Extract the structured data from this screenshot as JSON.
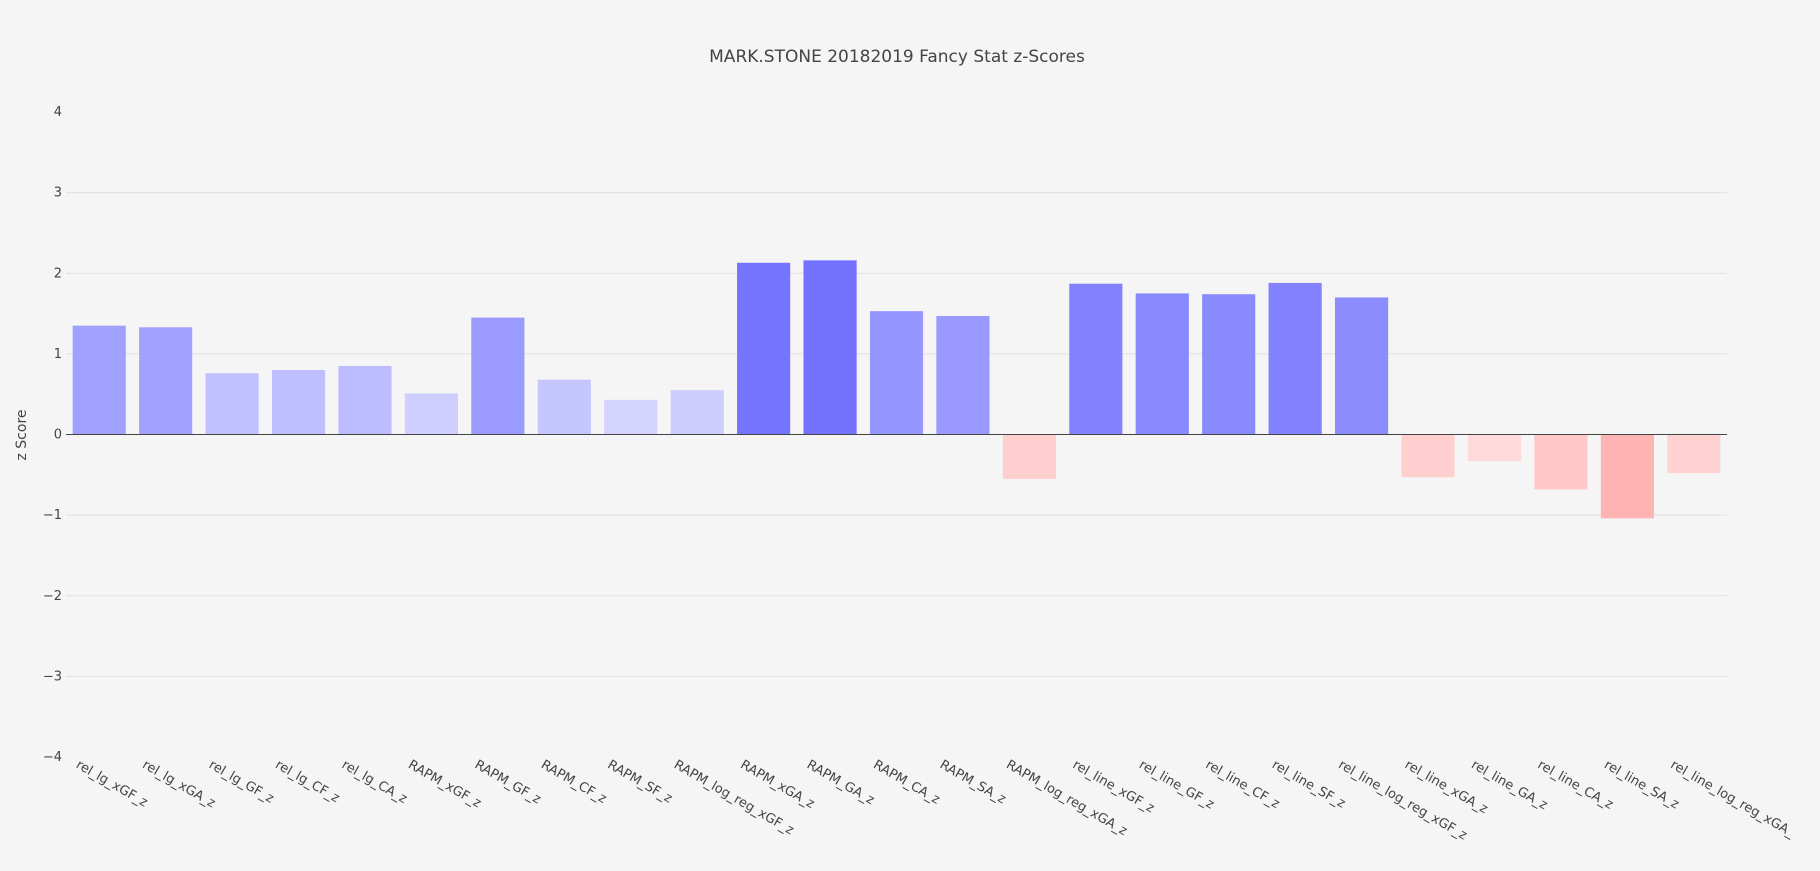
{
  "chart_data": {
    "type": "bar",
    "title": "MARK.STONE 20182019 Fancy Stat z-Scores",
    "xlabel": "",
    "ylabel": "z Score",
    "ylim": [
      -4,
      4
    ],
    "yticks": [
      "−4",
      "−3",
      "−2",
      "−1",
      "0",
      "1",
      "2",
      "3",
      "4"
    ],
    "yticks_values": [
      -4,
      -3,
      -2,
      -1,
      0,
      1,
      2,
      3,
      4
    ],
    "grid": true,
    "legend": "none",
    "colors": {
      "positive": "#7272ff",
      "negative": "#ffb3b3",
      "background": "#f5f5f5",
      "grid": "#e0e0e0",
      "zeroline": "#444444"
    },
    "categories": [
      "rel_lg_xGF_z",
      "rel_lg_xGA_z",
      "rel_lg_GF_z",
      "rel_lg_CF_z",
      "rel_lg_CA_z",
      "RAPM_xGF_z",
      "RAPM_GF_z",
      "RAPM_CF_z",
      "RAPM_SF_z",
      "RAPM_log_reg_xGF_z",
      "RAPM_xGA_z",
      "RAPM_GA_z",
      "RAPM_CA_z",
      "RAPM_SA_z",
      "RAPM_log_reg_xGA_z",
      "rel_line_xGF_z",
      "rel_line_GF_z",
      "rel_line_CF_z",
      "rel_line_SF_z",
      "rel_line_log_reg_xGF_z",
      "rel_line_xGA_z",
      "rel_line_GA_z",
      "rel_line_CA_z",
      "rel_line_SA_z",
      "rel_line_log_reg_xGA_z"
    ],
    "tick_labels": [
      "rel_lg_xGF_z",
      "rel_lg_xGA_z",
      "rel_lg_GF_z",
      "rel_lg_CF_z",
      "rel_lg_CA_z",
      "RAPM_xGF_z",
      "RAPM_GF_z",
      "RAPM_CF_z",
      "RAPM_SF_z",
      "RAPM_log_reg_xGF_z",
      "RAPM_xGA_z",
      "RAPM_GA_z",
      "RAPM_CA_z",
      "RAPM_SA_z",
      "RAPM_log_reg_xGA_z",
      "rel_line_xGF_z",
      "rel_line_GF_z",
      "rel_line_CF_z",
      "rel_line_SF_z",
      "rel_line_log_reg_xGF_z",
      "rel_line_xGA_z",
      "rel_line_GA_z",
      "rel_line_CA_z",
      "rel_line_SA_z",
      "rel_line_log_reg_xGA_"
    ],
    "values": [
      1.35,
      1.33,
      0.76,
      0.8,
      0.85,
      0.51,
      1.45,
      0.68,
      0.43,
      0.55,
      2.13,
      2.16,
      1.53,
      1.47,
      -0.55,
      1.87,
      1.75,
      1.74,
      1.88,
      1.7,
      -0.53,
      -0.33,
      -0.68,
      -1.04,
      -0.48
    ]
  }
}
